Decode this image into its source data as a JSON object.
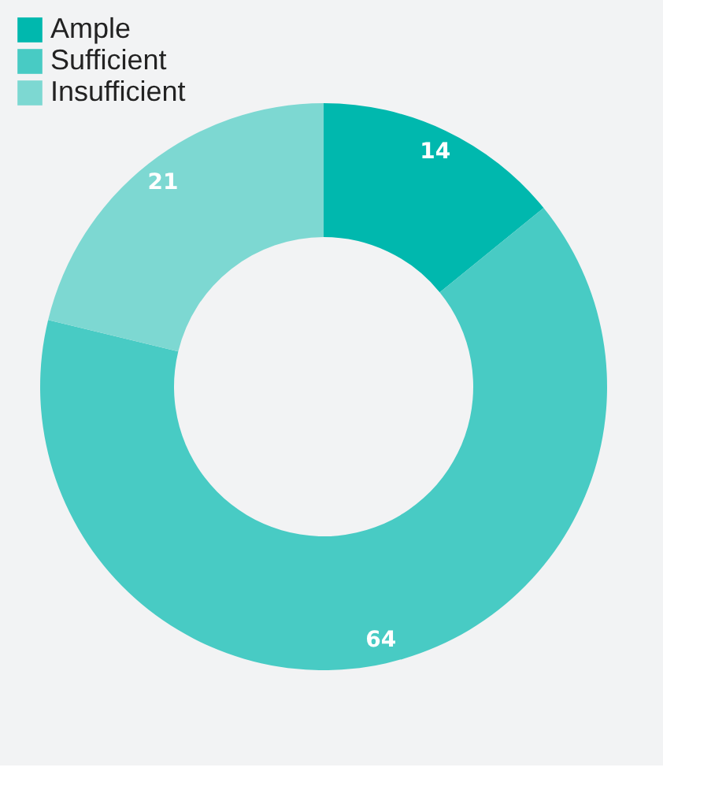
{
  "chart_data": {
    "type": "donut",
    "categories": [
      "Ample",
      "Sufficient",
      "Insufficient"
    ],
    "values": [
      14,
      64,
      21
    ],
    "colors": [
      "#00b8ae",
      "#48cbc4",
      "#7dd8d2"
    ],
    "data_labels": true,
    "legend": "top left"
  }
}
